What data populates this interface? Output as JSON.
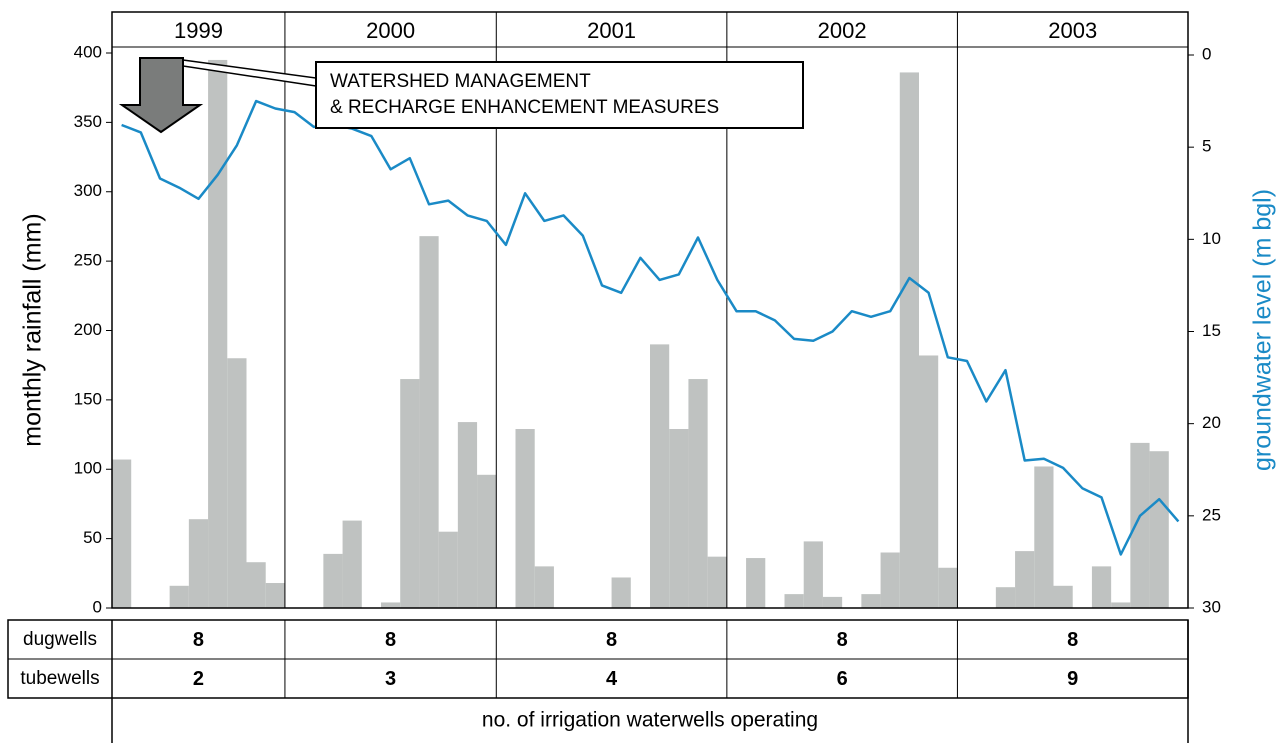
{
  "chart_data": {
    "type": "bar",
    "categories": [
      null,
      null,
      null,
      null,
      null,
      null,
      null,
      null,
      null,
      null,
      null,
      null,
      null,
      null,
      null,
      null,
      null,
      null,
      null,
      null,
      null,
      null,
      null,
      null,
      null,
      null,
      null,
      null,
      null,
      null,
      null,
      null,
      null,
      null,
      null,
      null,
      null,
      null,
      null,
      null,
      null,
      null,
      null,
      null,
      null,
      null,
      null,
      null,
      null,
      null,
      null,
      null,
      null,
      null,
      null,
      null
    ],
    "periods": [
      "1999",
      "2000",
      "2001",
      "2002",
      "2003"
    ],
    "period_months": [
      9,
      11,
      12,
      12,
      12
    ],
    "ylabel": "monthly rainfall (mm)",
    "y2label": "groundwater level (m bgl)",
    "ylim": [
      0,
      400
    ],
    "yticks": [
      0,
      50,
      100,
      150,
      200,
      250,
      300,
      350,
      400
    ],
    "y2lim": [
      30,
      0
    ],
    "y2ticks": [
      0,
      5,
      10,
      15,
      20,
      25,
      30
    ],
    "series": [
      {
        "color": "#bfc2c1",
        "values": [
          107,
          0,
          0,
          16,
          64,
          395,
          180,
          33,
          18,
          0,
          0,
          39,
          63,
          0,
          4,
          165,
          268,
          55,
          134,
          96,
          0,
          129,
          30,
          0,
          0,
          0,
          22,
          0,
          190,
          129,
          165,
          37,
          0,
          36,
          0,
          10,
          48,
          8,
          0,
          10,
          40,
          386,
          182,
          29,
          0,
          0,
          15,
          41,
          102,
          16,
          0,
          30,
          4,
          119,
          113,
          0
        ]
      },
      {
        "color": "#1a8ac6",
        "axis": "y2",
        "values": [
          3.8,
          4.2,
          6.7,
          7.2,
          7.8,
          6.5,
          4.9,
          2.5,
          2.9,
          3.1,
          3.9,
          3.8,
          4.0,
          4.4,
          6.2,
          5.6,
          8.1,
          7.9,
          8.7,
          9.0,
          10.3,
          7.5,
          9.0,
          8.7,
          9.8,
          12.5,
          12.9,
          11.0,
          12.2,
          11.9,
          9.9,
          12.2,
          13.9,
          13.9,
          14.4,
          15.4,
          15.5,
          15.0,
          13.9,
          14.2,
          13.9,
          12.1,
          12.9,
          16.4,
          16.6,
          18.8,
          17.1,
          22.0,
          21.9,
          22.4,
          23.5,
          24.0,
          27.1,
          25.0,
          24.1,
          25.3
        ]
      }
    ],
    "annotation": [
      "WATERSHED MANAGEMENT",
      "& RECHARGE ENHANCEMENT MEASURES"
    ]
  },
  "table": {
    "row_labels": [
      "dugwells",
      "tubewells"
    ],
    "rows": [
      [
        8,
        8,
        8,
        8,
        8
      ],
      [
        2,
        3,
        4,
        6,
        9
      ]
    ],
    "caption": "no. of irrigation waterwells operating"
  }
}
